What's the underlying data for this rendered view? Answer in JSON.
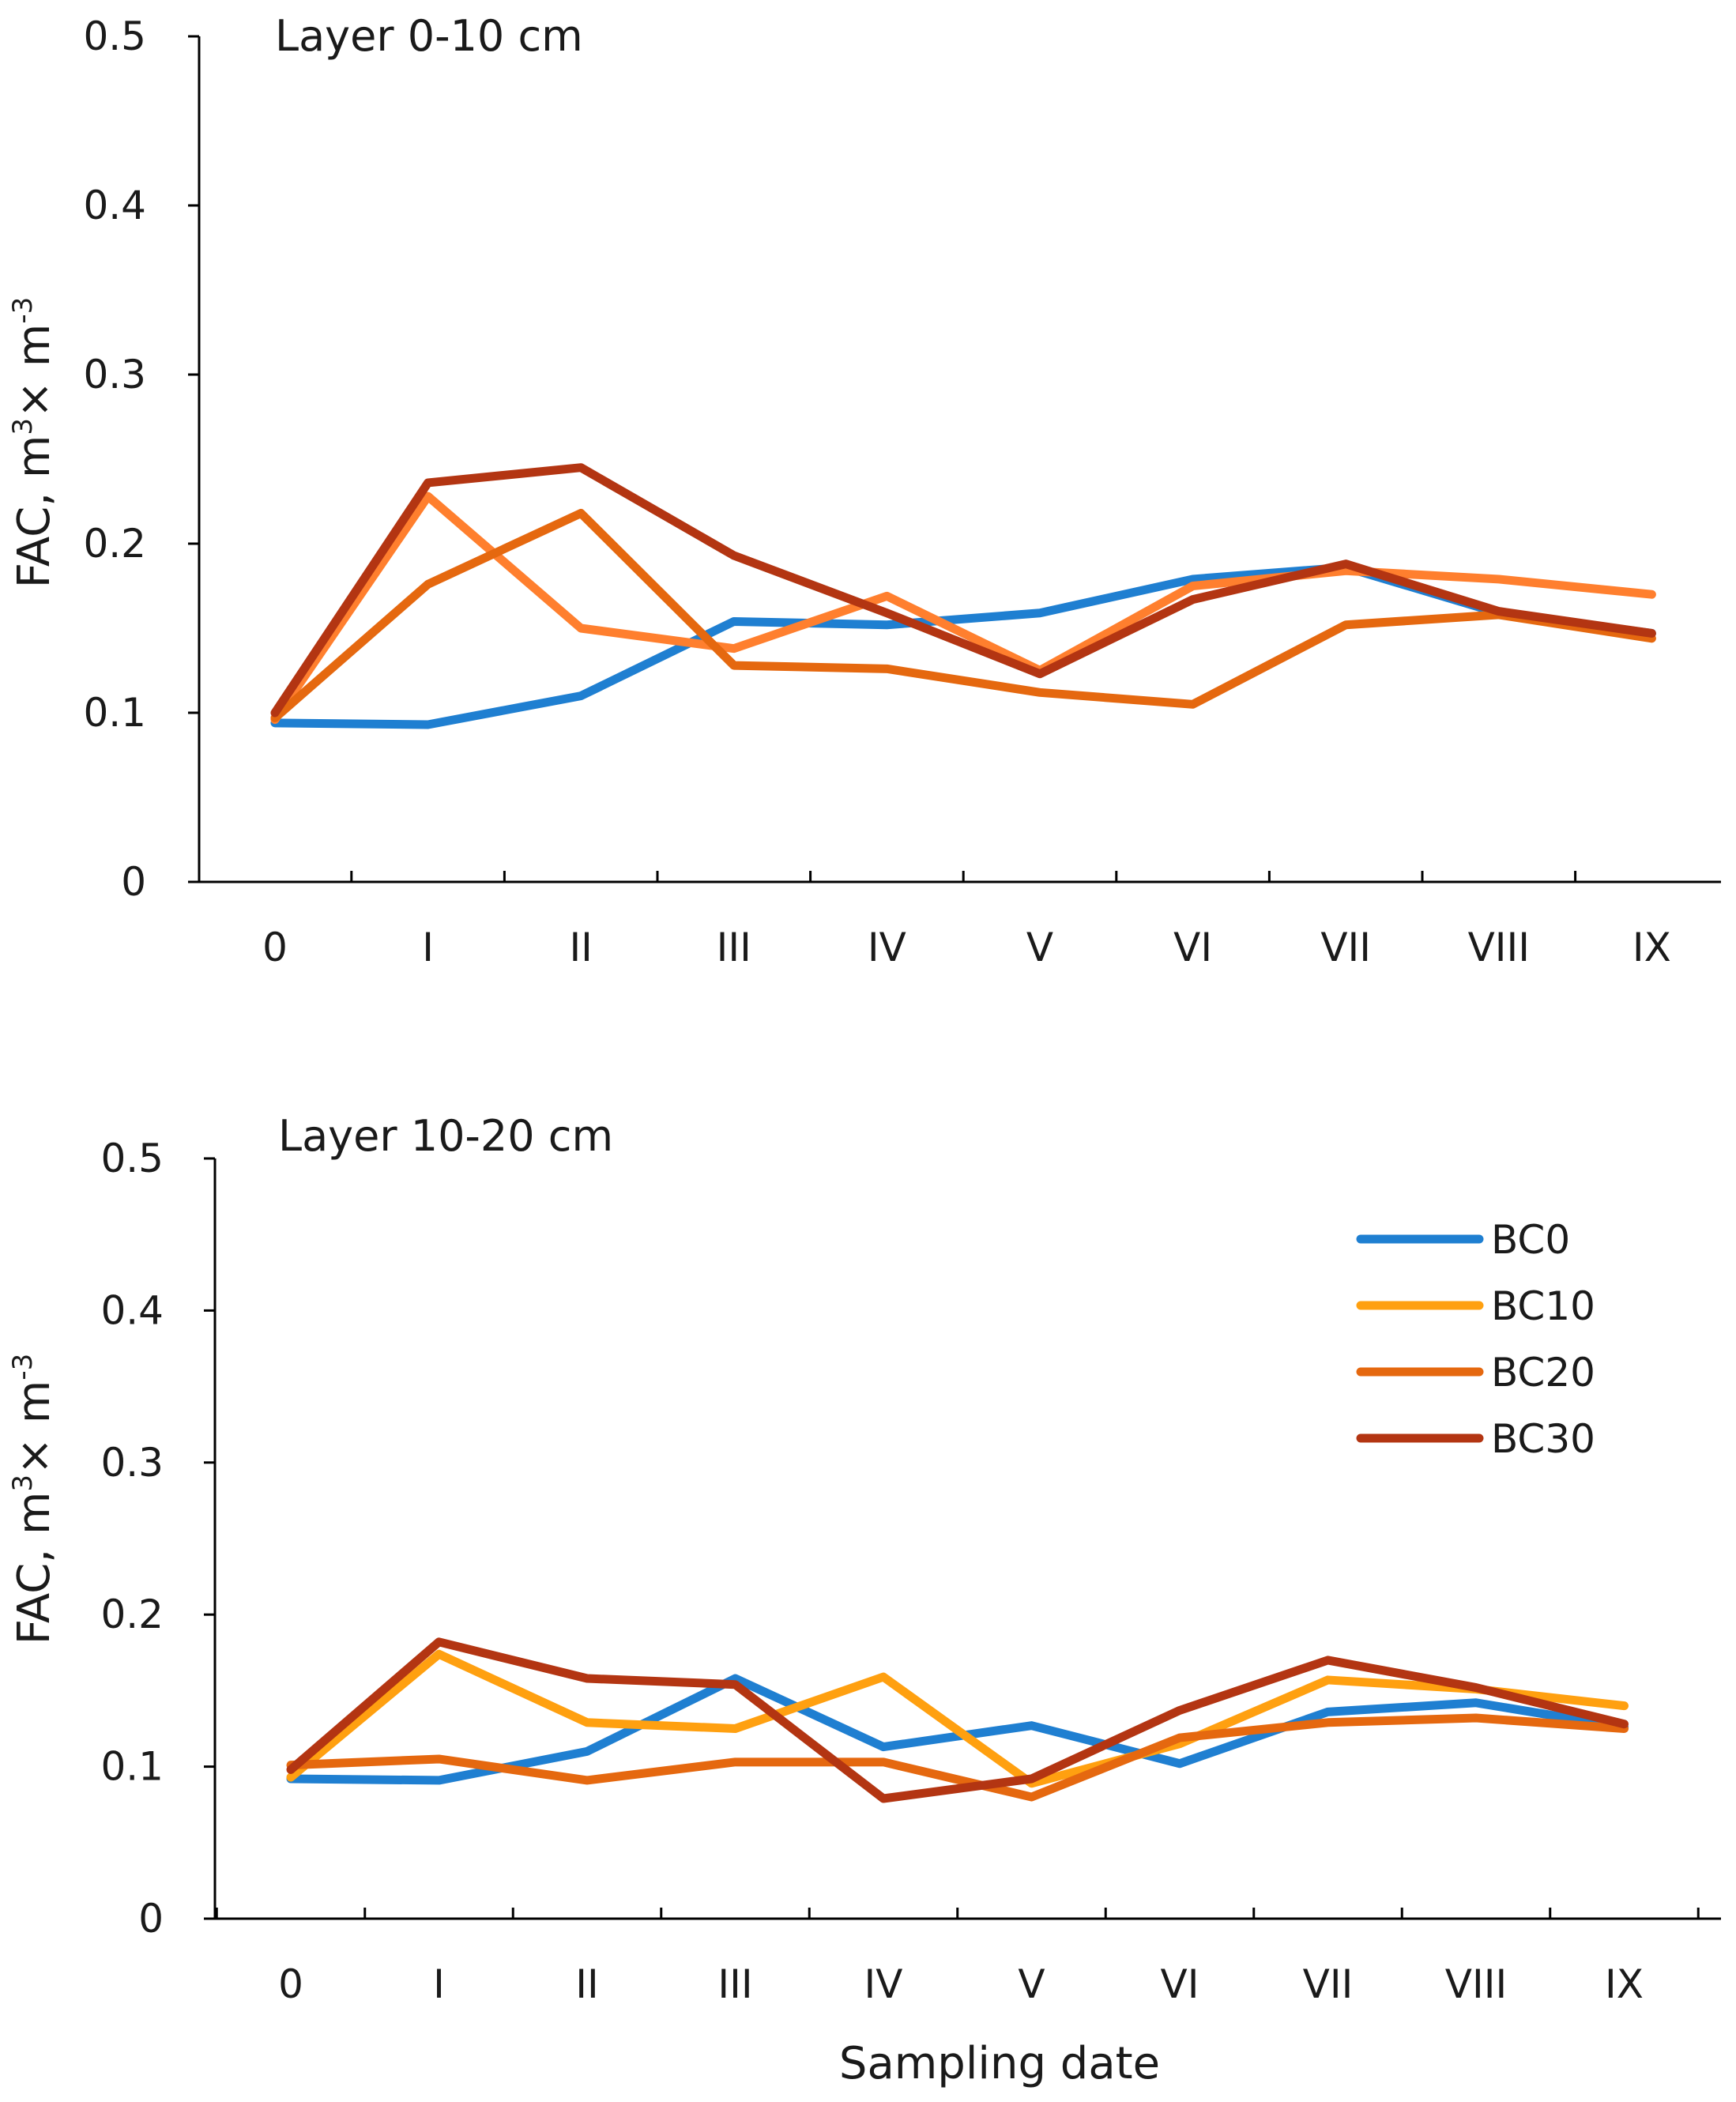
{
  "chart_data": [
    {
      "type": "line",
      "title": "Layer 0-10 cm",
      "xlabel": "",
      "ylabel": "FAC, m³× m⁻³",
      "ylim": [
        0,
        0.5
      ],
      "yticks": [
        "0",
        "0.1",
        "0.2",
        "0.3",
        "0.4",
        "0.5"
      ],
      "categories": [
        "0",
        "I",
        "II",
        "III",
        "IV",
        "V",
        "VI",
        "VII",
        "VIII",
        "IX"
      ],
      "grid": false,
      "legend": null,
      "series": [
        {
          "name": "BC0",
          "color": "#1f7fd1",
          "values": [
            0.094,
            0.093,
            0.11,
            0.154,
            0.152,
            0.159,
            0.179,
            0.186,
            0.159,
            0.147
          ]
        },
        {
          "name": "BC10",
          "color": "#ff7f2e",
          "values": [
            0.096,
            0.228,
            0.15,
            0.138,
            0.169,
            0.125,
            0.175,
            0.184,
            0.179,
            0.17
          ]
        },
        {
          "name": "BC20",
          "color": "#e5680f",
          "values": [
            0.097,
            0.176,
            0.218,
            0.128,
            0.126,
            0.112,
            0.105,
            0.152,
            0.158,
            0.144
          ]
        },
        {
          "name": "BC30",
          "color": "#b33512",
          "values": [
            0.1,
            0.236,
            0.245,
            0.193,
            0.159,
            0.123,
            0.167,
            0.188,
            0.16,
            0.147
          ]
        }
      ]
    },
    {
      "type": "line",
      "title": "Layer 10-20 cm",
      "xlabel": "Sampling date",
      "ylabel": "FAC, m³× m⁻³",
      "ylim": [
        0,
        0.5
      ],
      "yticks": [
        "0",
        "0.1",
        "0.2",
        "0.3",
        "0.4",
        "0.5"
      ],
      "categories": [
        "0",
        "I",
        "II",
        "III",
        "IV",
        "V",
        "VI",
        "VII",
        "VIII",
        "IX"
      ],
      "grid": false,
      "legend": "top-right",
      "series": [
        {
          "name": "BC0",
          "color": "#1f7fd1",
          "values": [
            0.092,
            0.091,
            0.11,
            0.158,
            0.113,
            0.127,
            0.102,
            0.136,
            0.142,
            0.126
          ]
        },
        {
          "name": "BC10",
          "color": "#ffa010",
          "values": [
            0.093,
            0.174,
            0.129,
            0.125,
            0.159,
            0.089,
            0.115,
            0.157,
            0.151,
            0.14
          ]
        },
        {
          "name": "BC20",
          "color": "#e5680f",
          "values": [
            0.101,
            0.105,
            0.091,
            0.103,
            0.103,
            0.08,
            0.119,
            0.129,
            0.132,
            0.125
          ]
        },
        {
          "name": "BC30",
          "color": "#b33512",
          "values": [
            0.098,
            0.182,
            0.158,
            0.154,
            0.079,
            0.092,
            0.137,
            0.17,
            0.152,
            0.128
          ]
        }
      ]
    }
  ],
  "legend_items": [
    "BC0",
    "BC10",
    "BC20",
    "BC30"
  ]
}
